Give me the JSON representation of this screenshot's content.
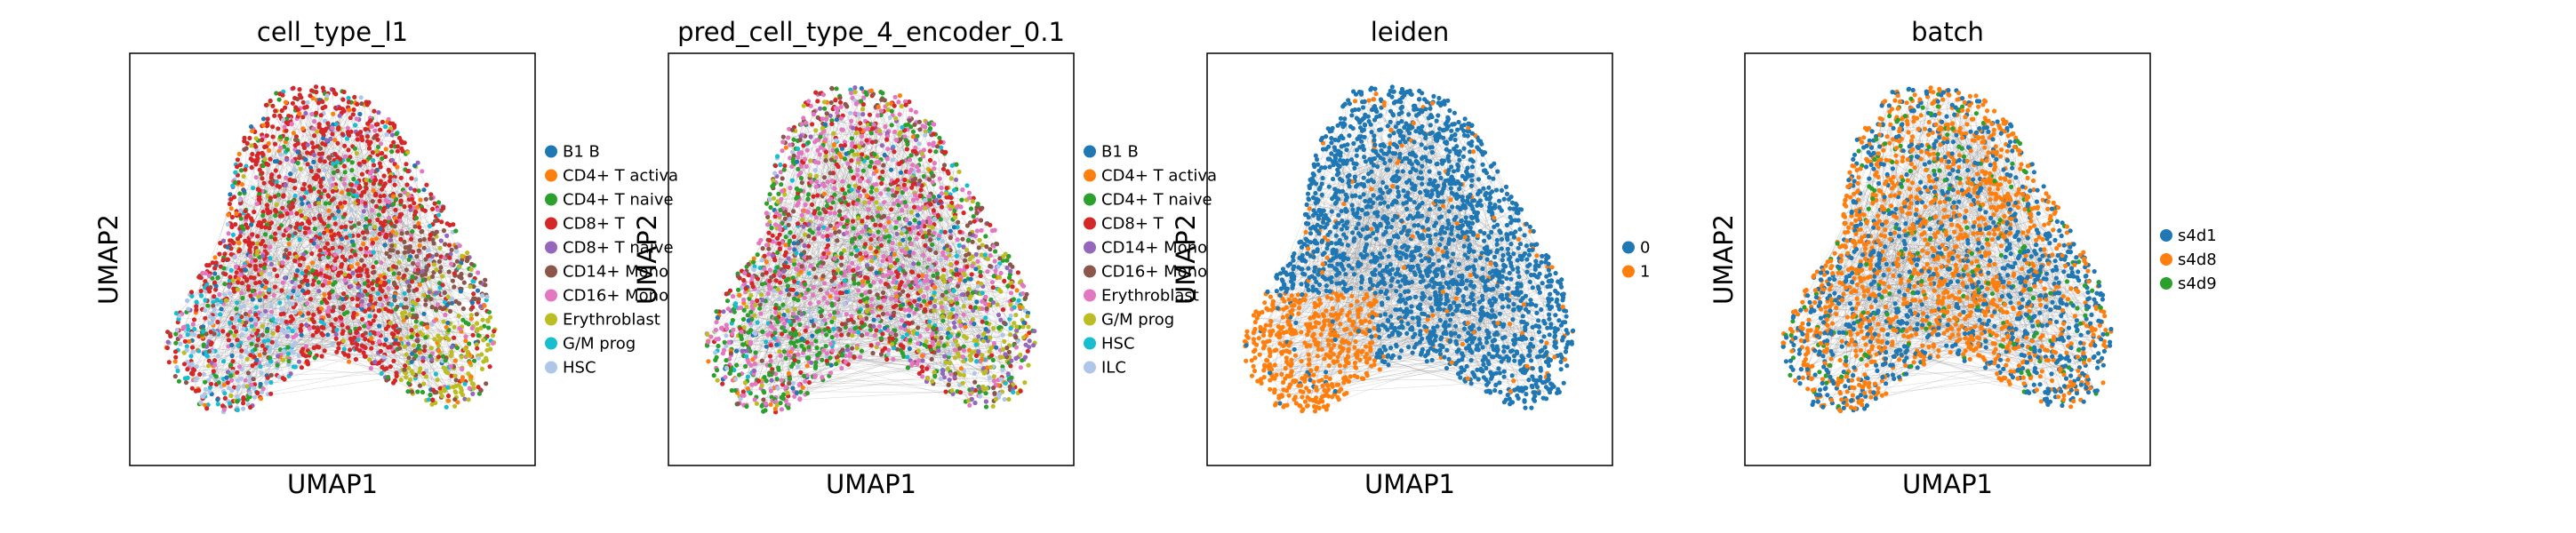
{
  "chart_data": [
    {
      "type": "scatter",
      "title": "cell_type_l1",
      "xlabel": "UMAP1",
      "ylabel": "UMAP2",
      "legend": "right",
      "legend_entries": [
        {
          "label": "B1 B",
          "color": "#1f77b4"
        },
        {
          "label": "CD4+ T activa",
          "color": "#ff7f0e"
        },
        {
          "label": "CD4+ T naive",
          "color": "#2ca02c"
        },
        {
          "label": "CD8+ T",
          "color": "#d62728"
        },
        {
          "label": "CD8+ T naive",
          "color": "#9467bd"
        },
        {
          "label": "CD14+ Mono",
          "color": "#8c564b"
        },
        {
          "label": "CD16+ Mono",
          "color": "#e377c2"
        },
        {
          "label": "Erythroblast",
          "color": "#bcbd22"
        },
        {
          "label": "G/M prog",
          "color": "#17becf"
        },
        {
          "label": "HSC",
          "color": "#aec7e8"
        }
      ]
    },
    {
      "type": "scatter",
      "title": "pred_cell_type_4_encoder_0.1",
      "xlabel": "UMAP1",
      "ylabel": "UMAP2",
      "legend": "right",
      "legend_entries": [
        {
          "label": "B1 B",
          "color": "#1f77b4"
        },
        {
          "label": "CD4+ T activa",
          "color": "#ff7f0e"
        },
        {
          "label": "CD4+ T naive",
          "color": "#2ca02c"
        },
        {
          "label": "CD8+ T",
          "color": "#d62728"
        },
        {
          "label": "CD14+ Mono",
          "color": "#9467bd"
        },
        {
          "label": "CD16+ Mono",
          "color": "#8c564b"
        },
        {
          "label": "Erythroblast",
          "color": "#e377c2"
        },
        {
          "label": "G/M prog",
          "color": "#bcbd22"
        },
        {
          "label": "HSC",
          "color": "#17becf"
        },
        {
          "label": "ILC",
          "color": "#aec7e8"
        }
      ]
    },
    {
      "type": "scatter",
      "title": "leiden",
      "xlabel": "UMAP1",
      "ylabel": "UMAP2",
      "legend": "right",
      "legend_entries": [
        {
          "label": "0",
          "color": "#1f77b4"
        },
        {
          "label": "1",
          "color": "#ff7f0e"
        }
      ]
    },
    {
      "type": "scatter",
      "title": "batch",
      "xlabel": "UMAP1",
      "ylabel": "UMAP2",
      "legend": "right",
      "legend_entries": [
        {
          "label": "s4d1",
          "color": "#1f77b4"
        },
        {
          "label": "s4d8",
          "color": "#ff7f0e"
        },
        {
          "label": "s4d9",
          "color": "#2ca02c"
        }
      ]
    }
  ]
}
